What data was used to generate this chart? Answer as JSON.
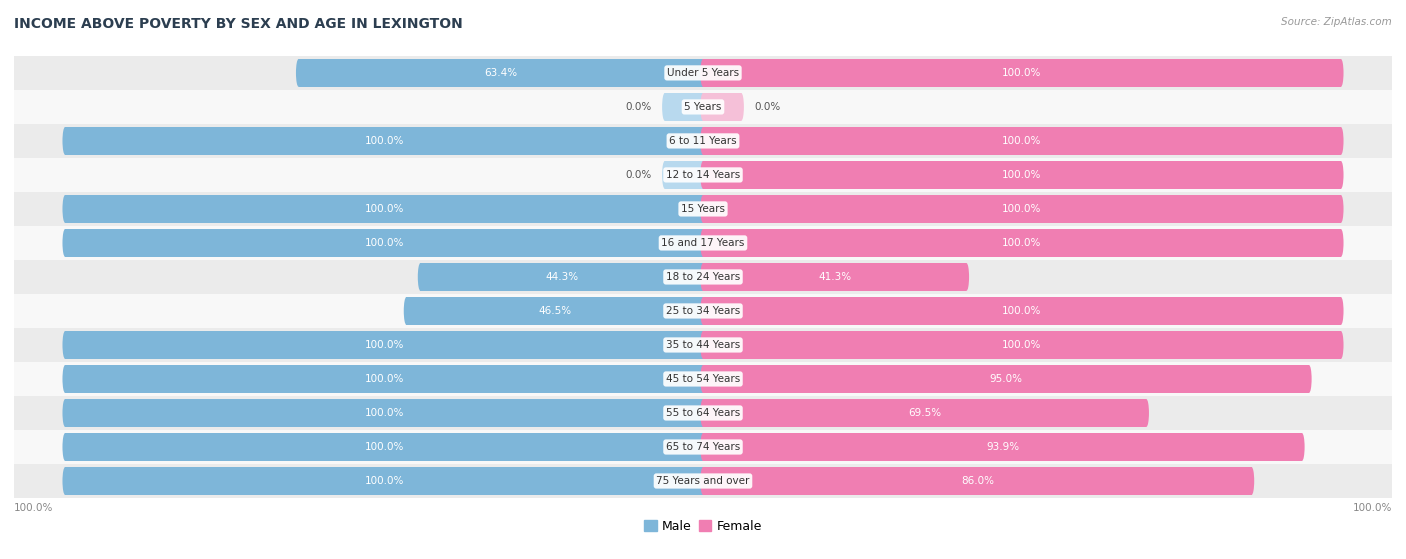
{
  "title": "INCOME ABOVE POVERTY BY SEX AND AGE IN LEXINGTON",
  "source": "Source: ZipAtlas.com",
  "categories": [
    "Under 5 Years",
    "5 Years",
    "6 to 11 Years",
    "12 to 14 Years",
    "15 Years",
    "16 and 17 Years",
    "18 to 24 Years",
    "25 to 34 Years",
    "35 to 44 Years",
    "45 to 54 Years",
    "55 to 64 Years",
    "65 to 74 Years",
    "75 Years and over"
  ],
  "male": [
    63.4,
    0.0,
    100.0,
    0.0,
    100.0,
    100.0,
    44.3,
    46.5,
    100.0,
    100.0,
    100.0,
    100.0,
    100.0
  ],
  "female": [
    100.0,
    0.0,
    100.0,
    100.0,
    100.0,
    100.0,
    41.3,
    100.0,
    100.0,
    95.0,
    69.5,
    93.9,
    86.0
  ],
  "male_color": "#7EB6D9",
  "female_color": "#F07EB2",
  "male_color_light": "#B8D9EE",
  "female_color_light": "#F5C0D8",
  "bg_row_even": "#EBEBEB",
  "bg_row_odd": "#F8F8F8",
  "title_color": "#2C3E50",
  "source_color": "#999999",
  "label_inside_color": "#FFFFFF",
  "label_outside_color": "#555555",
  "cat_label_color": "#333333",
  "bottom_label_color": "#888888",
  "xlim_abs": 100,
  "small_bar_val": 15.0,
  "legend_male": "Male",
  "legend_female": "Female"
}
